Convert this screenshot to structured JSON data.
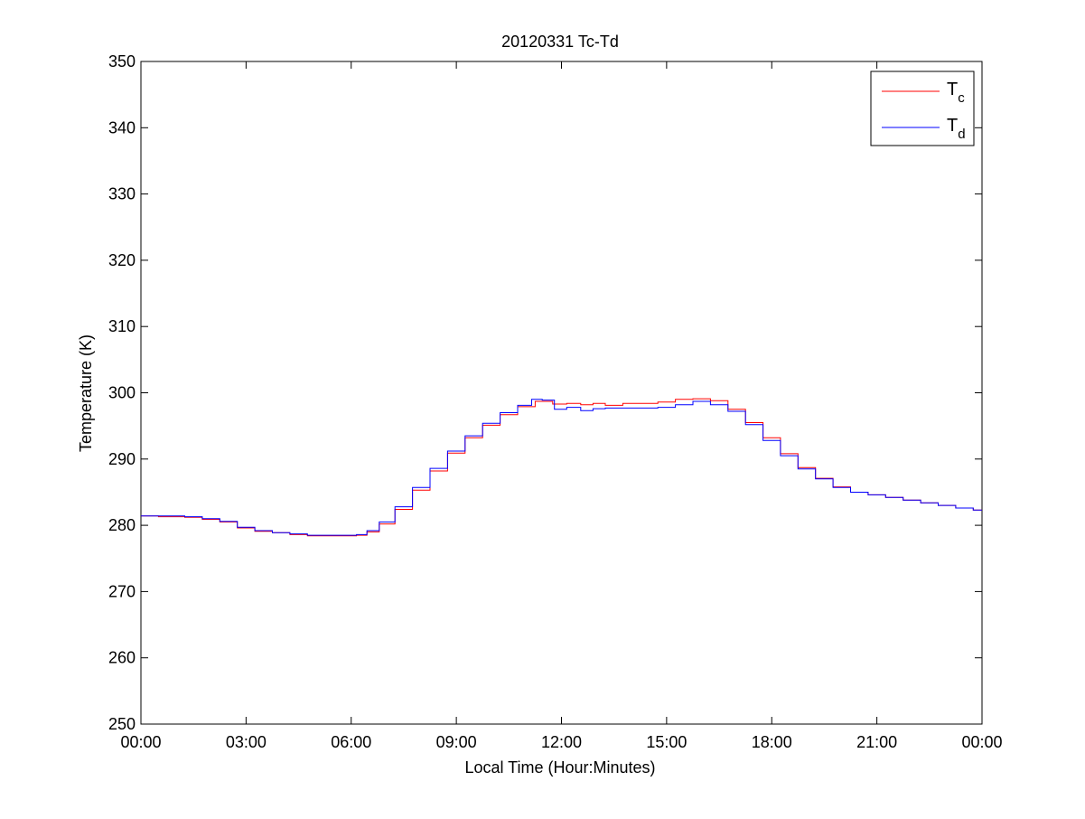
{
  "chart_data": {
    "type": "line",
    "title": "20120331 Tc-Td",
    "xlabel": "Local Time (Hour:Minutes)",
    "ylabel": "Temperature (K)",
    "xlim": [
      0,
      24
    ],
    "ylim": [
      250,
      350
    ],
    "x_unit": "hours (local time)",
    "xtick_values": [
      0,
      3,
      6,
      9,
      12,
      15,
      18,
      21,
      24
    ],
    "xtick_labels": [
      "00:00",
      "03:00",
      "06:00",
      "09:00",
      "12:00",
      "15:00",
      "18:00",
      "21:00",
      "00:00"
    ],
    "ytick_values": [
      250,
      260,
      270,
      280,
      290,
      300,
      310,
      320,
      330,
      340,
      350
    ],
    "ytick_labels": [
      "250",
      "260",
      "270",
      "280",
      "290",
      "300",
      "310",
      "320",
      "330",
      "340",
      "350"
    ],
    "grid": false,
    "legend_position": "top-right",
    "series": [
      {
        "name": "T_c",
        "legend_main": "T",
        "legend_sub": "c",
        "color": "#ff0000",
        "x": [
          0,
          1.0,
          1.5,
          2.0,
          2.5,
          3.0,
          3.5,
          4.0,
          4.5,
          5.0,
          5.5,
          6.0,
          6.3,
          6.6,
          7.0,
          7.5,
          8.0,
          8.5,
          9.0,
          9.5,
          10.0,
          10.5,
          11.0,
          11.5,
          12.0,
          12.3,
          12.8,
          13.0,
          13.5,
          14.0,
          14.5,
          15.0,
          15.5,
          16.0,
          16.5,
          17.0,
          17.5,
          18.0,
          18.5,
          19.0,
          19.5,
          20.0,
          20.5,
          21.0,
          21.5,
          22.0,
          22.5,
          23.0,
          23.5,
          24.0
        ],
        "y": [
          281.4,
          281.3,
          281.2,
          280.9,
          280.5,
          279.6,
          279.1,
          278.9,
          278.6,
          278.4,
          278.4,
          278.4,
          278.5,
          279.0,
          280.2,
          282.4,
          285.3,
          288.2,
          290.9,
          293.2,
          295.1,
          296.7,
          297.9,
          298.7,
          298.3,
          298.4,
          298.2,
          298.4,
          298.1,
          298.4,
          298.4,
          298.6,
          299.0,
          299.1,
          298.8,
          297.5,
          295.5,
          293.2,
          290.8,
          288.7,
          287.1,
          285.8,
          285.0,
          284.6,
          284.2,
          283.8,
          283.4,
          283.0,
          282.6,
          282.3
        ]
      },
      {
        "name": "T_d",
        "legend_main": "T",
        "legend_sub": "d",
        "color": "#0000ff",
        "x": [
          0,
          1.0,
          1.5,
          2.0,
          2.5,
          3.0,
          3.5,
          4.0,
          4.5,
          5.0,
          5.5,
          6.0,
          6.3,
          6.6,
          7.0,
          7.5,
          8.0,
          8.5,
          9.0,
          9.5,
          10.0,
          10.5,
          11.0,
          11.3,
          11.6,
          12.0,
          12.3,
          12.8,
          13.0,
          13.5,
          14.0,
          14.5,
          15.0,
          15.5,
          16.0,
          16.5,
          17.0,
          17.5,
          18.0,
          18.5,
          19.0,
          19.5,
          20.0,
          20.5,
          21.0,
          21.5,
          22.0,
          22.5,
          23.0,
          23.5,
          24.0
        ],
        "y": [
          281.4,
          281.4,
          281.3,
          281.0,
          280.6,
          279.7,
          279.2,
          278.9,
          278.7,
          278.5,
          278.5,
          278.5,
          278.6,
          279.2,
          280.5,
          282.8,
          285.7,
          288.6,
          291.2,
          293.5,
          295.4,
          297.0,
          298.1,
          299.0,
          298.9,
          297.5,
          297.8,
          297.3,
          297.6,
          297.7,
          297.7,
          297.7,
          297.8,
          298.2,
          298.7,
          298.2,
          297.2,
          295.2,
          292.8,
          290.5,
          288.5,
          287.0,
          285.7,
          285.0,
          284.6,
          284.2,
          283.8,
          283.4,
          283.0,
          282.6,
          282.3
        ]
      }
    ]
  }
}
